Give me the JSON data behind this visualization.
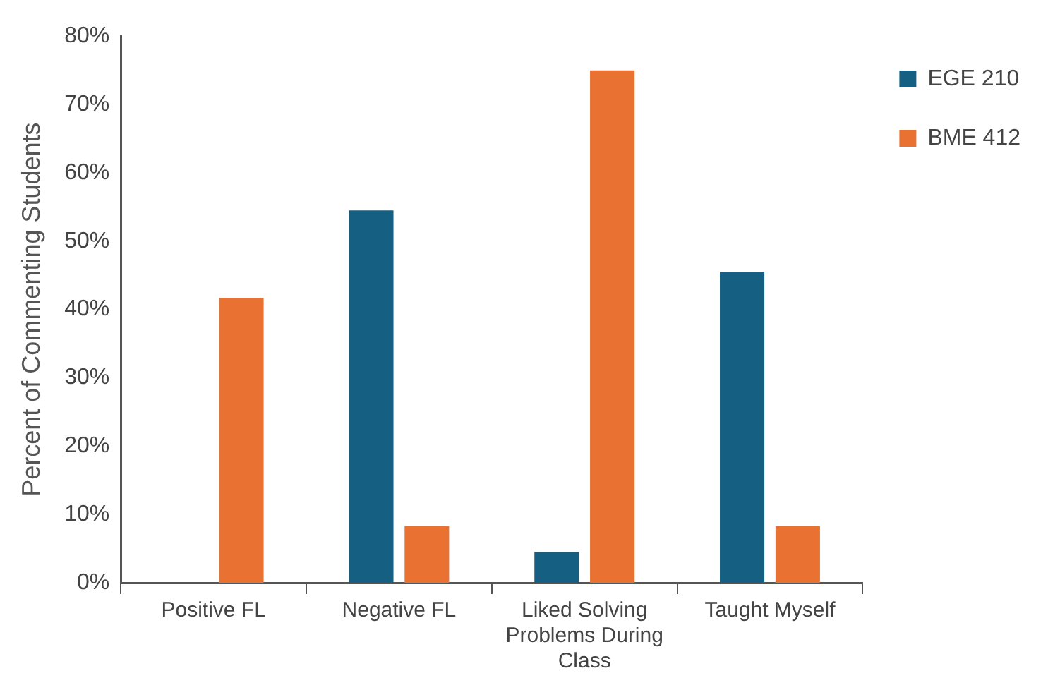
{
  "chart_data": {
    "type": "bar",
    "ylabel": "Percent of Commenting Students",
    "categories": [
      "Positive FL",
      "Negative FL",
      "Liked Solving Problems During Class",
      "Taught Myself"
    ],
    "series": [
      {
        "name": "EGE 210",
        "color": "#155f82",
        "values": [
          0,
          54.5,
          4.5,
          45.5
        ]
      },
      {
        "name": "BME 412",
        "color": "#e97132",
        "values": [
          41.7,
          8.3,
          75,
          8.3
        ]
      }
    ],
    "ylim": [
      0,
      80
    ],
    "yticks": [
      {
        "value": 0,
        "label": "0%"
      },
      {
        "value": 10,
        "label": "10%"
      },
      {
        "value": 20,
        "label": "20%"
      },
      {
        "value": 30,
        "label": "30%"
      },
      {
        "value": 40,
        "label": "40%"
      },
      {
        "value": 50,
        "label": "50%"
      },
      {
        "value": 60,
        "label": "60%"
      },
      {
        "value": 70,
        "label": "70%"
      },
      {
        "value": 80,
        "label": "80%"
      }
    ],
    "grid": false,
    "legend": "right"
  }
}
